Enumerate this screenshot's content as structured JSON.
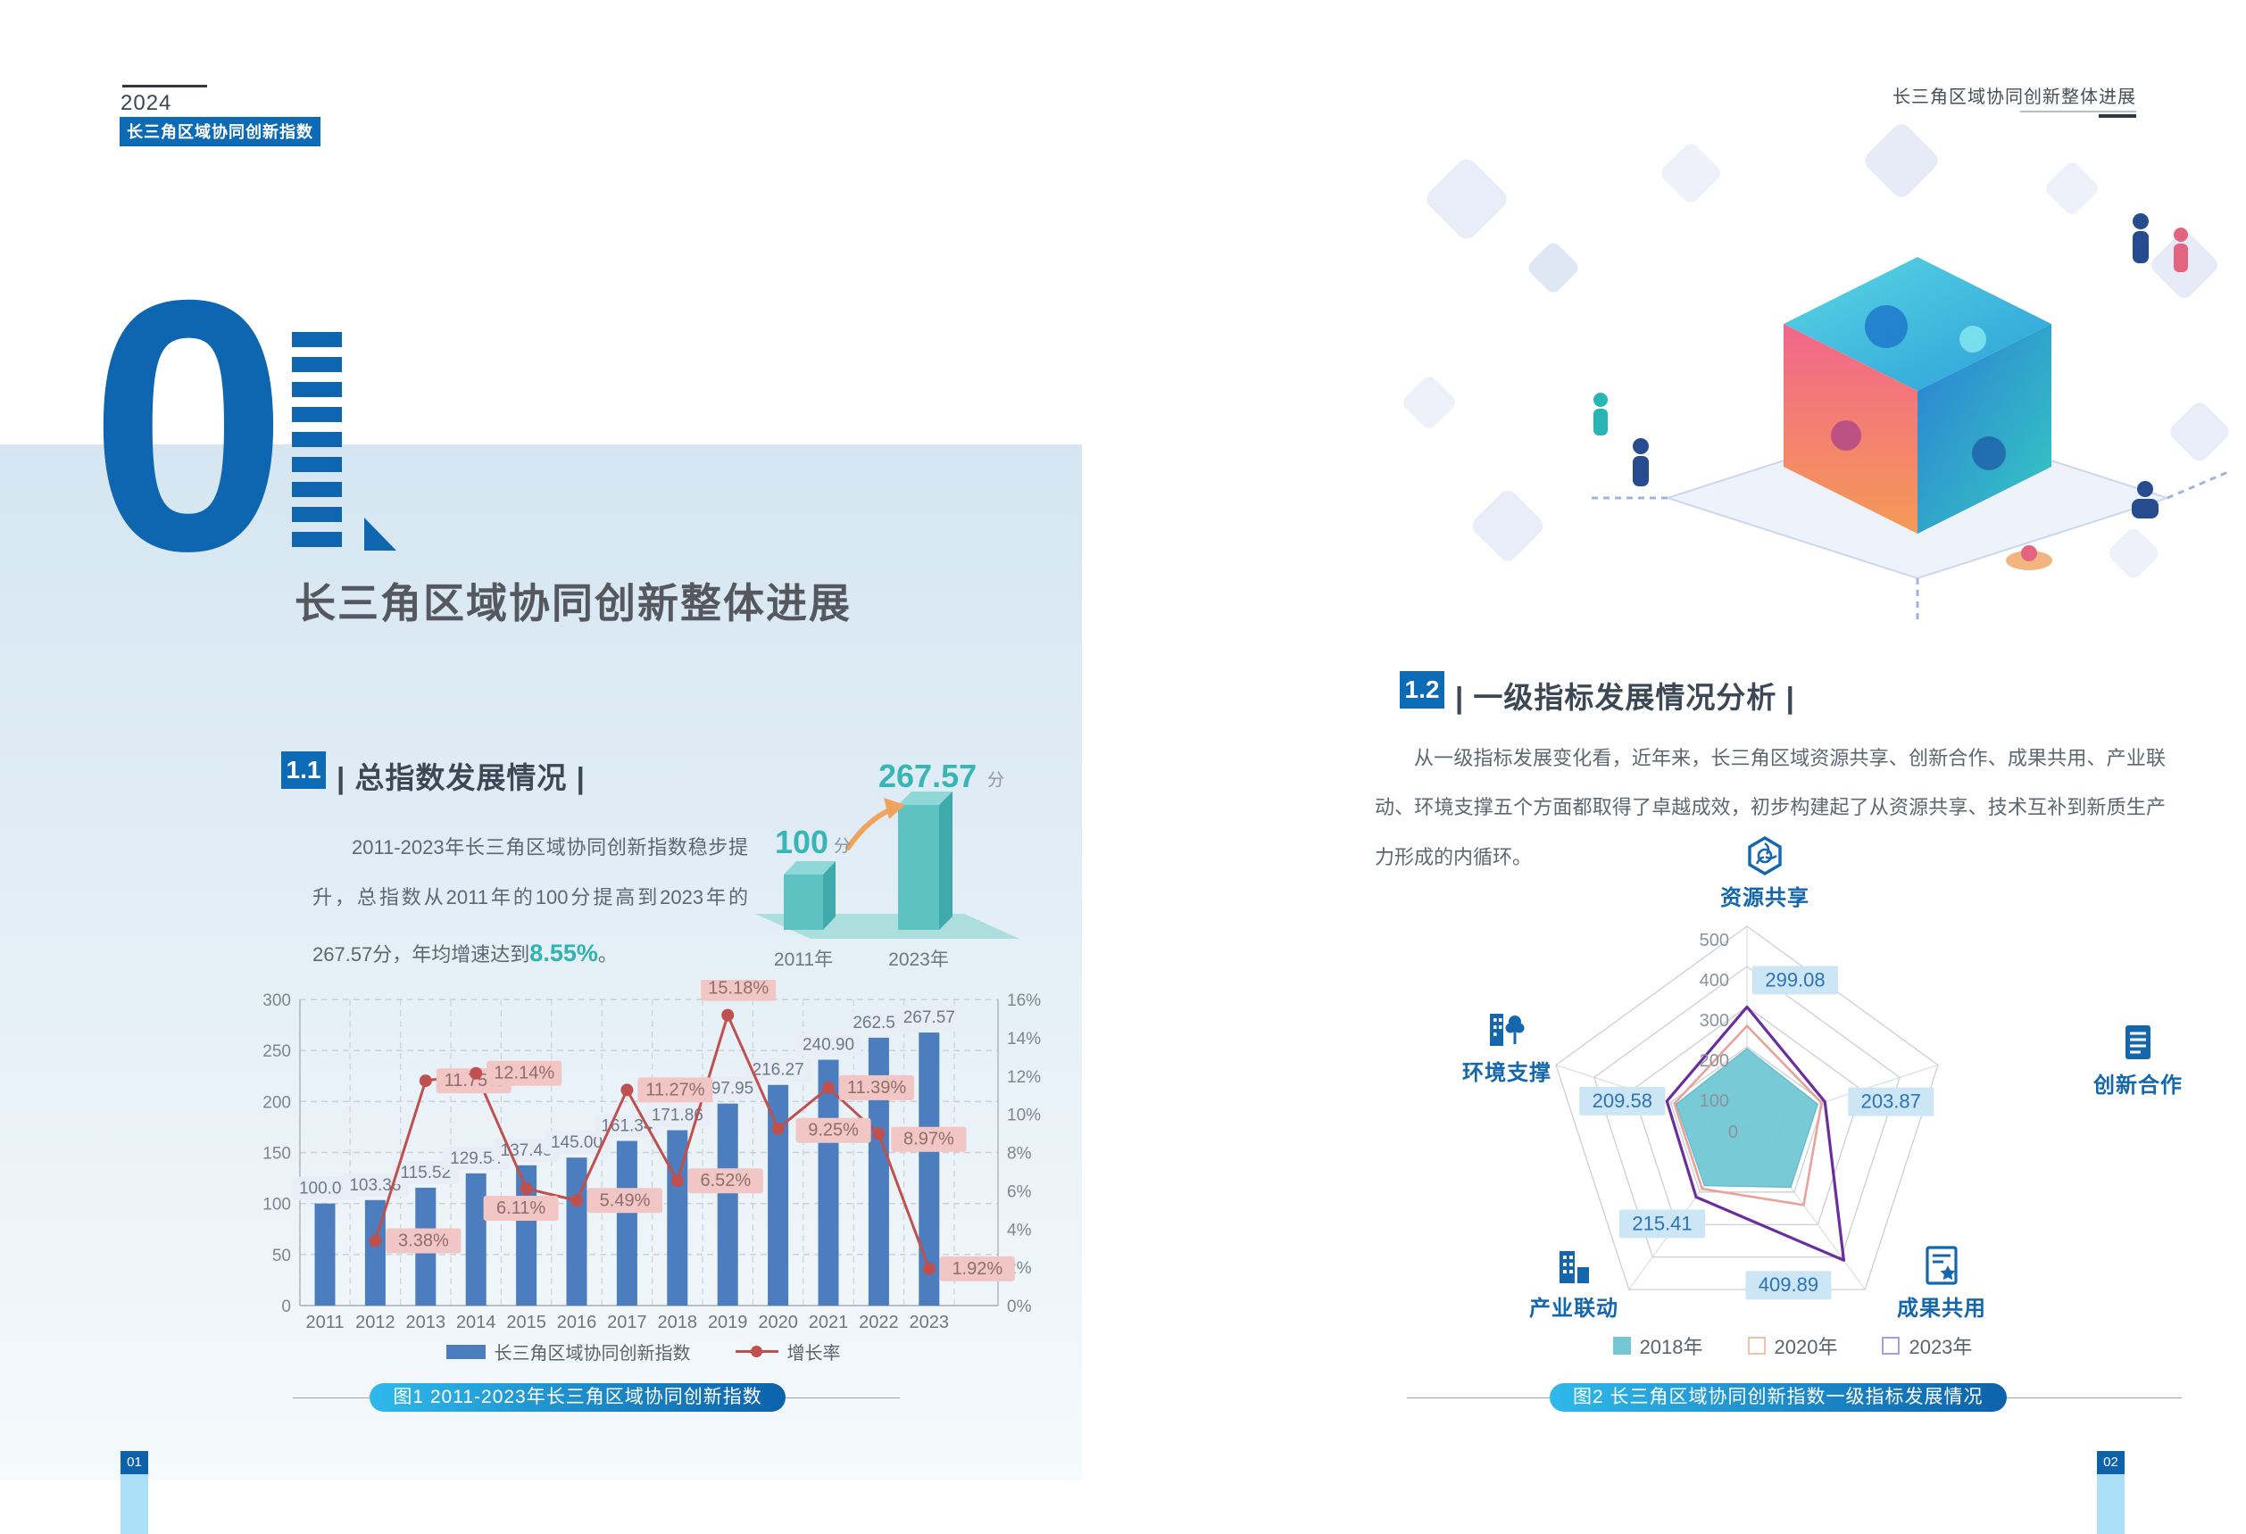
{
  "page_left": {
    "header": {
      "year": "2024",
      "badge": "长三角区域协同创新指数"
    },
    "chapter": {
      "number_zero": "0",
      "title": "长三角区域协同创新整体进展"
    },
    "section": {
      "badge": "1.1",
      "title": "| 总指数发展情况 |"
    },
    "paragraph": {
      "text_before": "2011-2023年长三角区域协同创新指数稳步提升，总指数从2011年的100分提高到2023年的267.57分，年均增速达到",
      "highlight": "8.55%",
      "text_after": "。"
    },
    "mini_chart": {
      "left_value": "100",
      "left_unit": "分",
      "left_year": "2011年",
      "right_value": "267.57",
      "right_unit": "分",
      "right_year": "2023年"
    },
    "footer_page": "01"
  },
  "page_right": {
    "header": "长三角区域协同创新整体进展",
    "section": {
      "badge": "1.2",
      "title": "| 一级指标发展情况分析 |"
    },
    "paragraph": "从一级指标发展变化看，近年来，长三角区域资源共享、创新合作、成果共用、产业联动、环境支撑五个方面都取得了卓越成效，初步构建起了从资源共享、技术互补到新质生产力形成的内循环。",
    "footer_page": "02"
  },
  "colors": {
    "primary_blue": "#0d6ab5",
    "bar_blue": "#4c7dbe",
    "line_red": "#c0504d",
    "teal": "#2fb3b3",
    "radar_2018_fill": "#74c8d6",
    "radar_2020_line": "#e8a29a",
    "radar_2023_line": "#6b2e9e",
    "legend_2020_swatch": "#f2c0ab",
    "legend_2023_swatch": "#a79fd6",
    "value_box_bg": "#cde6f6",
    "value_box_text": "#2c72b4"
  },
  "chart_data": [
    {
      "type": "bar",
      "title": "图1 2011-2023年长三角区域协同创新指数",
      "categories": [
        "2011",
        "2012",
        "2013",
        "2014",
        "2015",
        "2016",
        "2017",
        "2018",
        "2019",
        "2020",
        "2021",
        "2022",
        "2023"
      ],
      "series": [
        {
          "name": "长三角区域协同创新指数",
          "kind": "bar",
          "values": [
            100.0,
            103.38,
            115.52,
            129.54,
            137.45,
            145.0,
            161.34,
            171.86,
            197.95,
            216.27,
            240.9,
            262.52,
            267.57
          ]
        },
        {
          "name": "增长率",
          "kind": "line",
          "unit": "%",
          "values": [
            null,
            3.38,
            11.75,
            12.14,
            6.11,
            5.49,
            11.27,
            6.52,
            15.18,
            9.25,
            11.39,
            8.97,
            1.92
          ]
        }
      ],
      "left_axis": {
        "min": 0,
        "max": 300,
        "step": 50
      },
      "right_axis": {
        "min": 0,
        "max": 16,
        "step": 2,
        "unit": "%"
      },
      "grid": true,
      "legend_position": "bottom"
    },
    {
      "type": "radar",
      "title": "图2  长三角区域协同创新指数一级指标发展情况",
      "axes": [
        "资源共享",
        "创新合作",
        "成果共用",
        "产业联动",
        "环境支撑"
      ],
      "scale": {
        "min": 0,
        "max": 500,
        "step": 100
      },
      "series": [
        {
          "name": "2018年",
          "style": "filled",
          "estimated": true,
          "values": [
            195,
            185,
            185,
            180,
            185
          ]
        },
        {
          "name": "2020年",
          "style": "line",
          "estimated": true,
          "values": [
            252,
            195,
            240,
            190,
            190
          ]
        },
        {
          "name": "2023年",
          "style": "line",
          "labeled": true,
          "values": [
            299.08,
            203.87,
            409.89,
            215.41,
            209.58
          ]
        }
      ],
      "legend_position": "bottom"
    }
  ]
}
